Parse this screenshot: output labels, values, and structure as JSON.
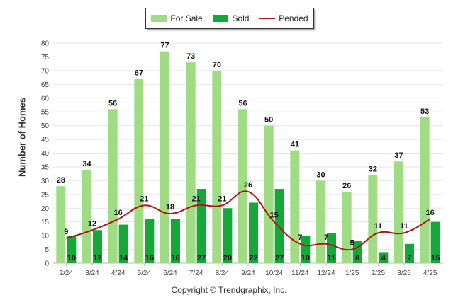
{
  "colors": {
    "for_sale": "#9fdc83",
    "sold": "#14a83a",
    "pended": "#b01515",
    "grid": "#e6e6e6",
    "axis_text": "#444444"
  },
  "legend": {
    "for_sale": "For Sale",
    "sold": "Sold",
    "pended": "Pended"
  },
  "copyright": "Copyright © Trendgraphix, Inc.",
  "chart_data": {
    "type": "bar",
    "ylabel": "Number of Homes",
    "xlabel": "",
    "ylim": [
      0,
      80
    ],
    "yticks": [
      0,
      5,
      10,
      15,
      20,
      25,
      30,
      35,
      40,
      45,
      50,
      55,
      60,
      65,
      70,
      75,
      80
    ],
    "grid": true,
    "legend_position": "top",
    "categories": [
      "2/24",
      "3/24",
      "4/24",
      "5/24",
      "6/24",
      "7/24",
      "8/24",
      "9/24",
      "10/24",
      "11/24",
      "12/24",
      "1/25",
      "2/25",
      "3/25",
      "4/25"
    ],
    "series": [
      {
        "name": "For Sale",
        "kind": "bar",
        "values": [
          28,
          34,
          56,
          67,
          77,
          73,
          70,
          56,
          50,
          41,
          30,
          26,
          32,
          37,
          53
        ]
      },
      {
        "name": "Sold",
        "kind": "bar",
        "values": [
          10,
          12,
          14,
          16,
          16,
          27,
          20,
          22,
          27,
          10,
          11,
          8,
          4,
          7,
          15
        ]
      },
      {
        "name": "Pended",
        "kind": "line",
        "values": [
          9,
          12,
          16,
          21,
          18,
          21,
          21,
          26,
          15,
          7,
          7,
          5,
          11,
          11,
          16
        ]
      }
    ]
  }
}
